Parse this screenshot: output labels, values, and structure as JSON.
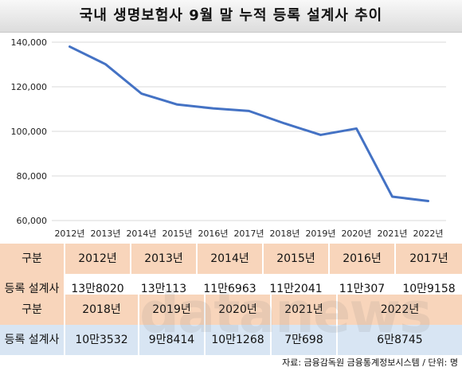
{
  "title": "국내 생명보험사 9월 말 누적 등록 설계사 추이",
  "chart_data": {
    "type": "line",
    "categories": [
      "2012년",
      "2013년",
      "2014년",
      "2015년",
      "2016년",
      "2017년",
      "2018년",
      "2019년",
      "2020년",
      "2021년",
      "2022년"
    ],
    "series": [
      {
        "values": [
          138020,
          130113,
          116963,
          112041,
          110307,
          109158,
          103532,
          98414,
          101268,
          70698,
          68745
        ]
      }
    ],
    "ylim": [
      60000,
      140000
    ],
    "yticks": [
      60000,
      80000,
      100000,
      120000,
      140000
    ],
    "ytick_labels": [
      "60,000",
      "80,000",
      "100,000",
      "120,000",
      "140,000"
    ],
    "grid": true,
    "line_color": "#4472c4"
  },
  "table1": {
    "header_label": "구분",
    "years": [
      "2012년",
      "2013년",
      "2014년",
      "2015년",
      "2016년",
      "2017년"
    ],
    "row_label": "등록 설계사",
    "values": [
      "13만8020",
      "13만113",
      "11만6963",
      "11만2041",
      "11만307",
      "10만9158"
    ]
  },
  "table2": {
    "header_label": "구분",
    "years": [
      "2018년",
      "2019년",
      "2020년",
      "2021년",
      "2022년"
    ],
    "row_label": "등록 설계사",
    "values": [
      "10만3532",
      "9만8414",
      "10만1268",
      "7만698",
      "6만8745"
    ]
  },
  "watermark": "datanews",
  "footer": "자료: 금융감독원 금융통계정보시스템 / 단위: 명",
  "colors": {
    "header_bg": "#f8d5bb",
    "value_bg": "#d8e5f3",
    "line": "#4472c4"
  }
}
